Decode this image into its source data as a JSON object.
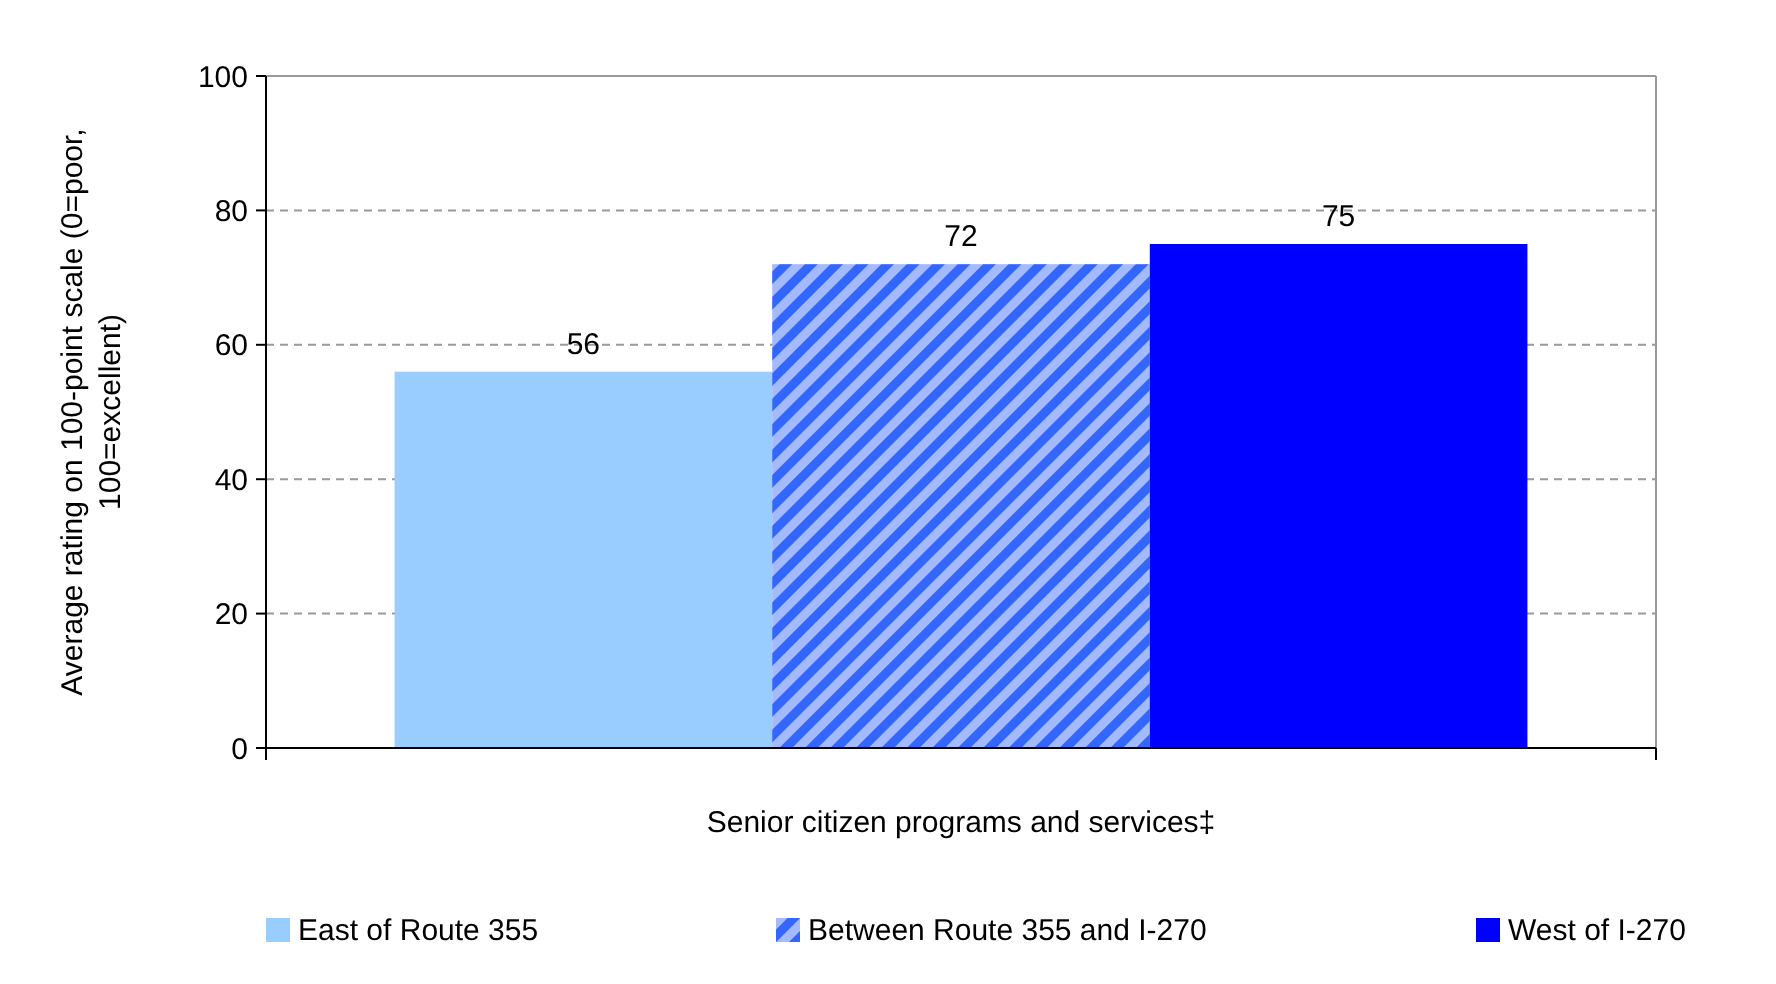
{
  "chart_data": {
    "type": "bar",
    "categories": [
      "Senior citizen programs and services‡"
    ],
    "ylabel": "Average rating on 100-point scale (0=poor, 100=excellent)",
    "ylim": [
      0,
      100
    ],
    "yticks": [
      0,
      20,
      40,
      60,
      80,
      100
    ],
    "grid": "y",
    "legend": "bottom",
    "data_labels": true,
    "series": [
      {
        "name": "East of Route 355",
        "color": "#99ccff",
        "values": [
          56
        ]
      },
      {
        "name": "Between Route 355 and I-270",
        "color": "#3366ff",
        "values": [
          72
        ]
      },
      {
        "name": "West of I-270",
        "color": "#0000ff",
        "values": [
          75
        ]
      }
    ]
  }
}
